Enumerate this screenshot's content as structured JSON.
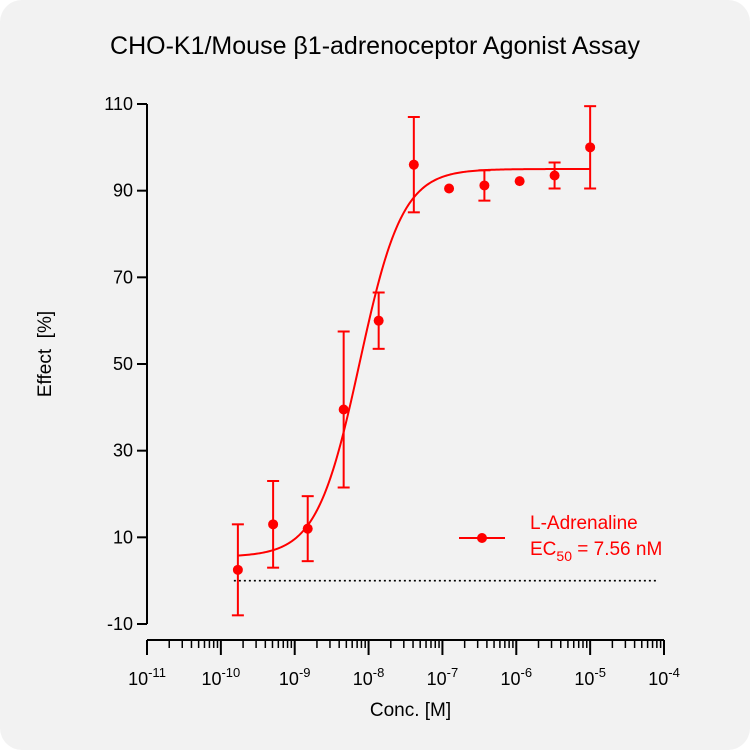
{
  "chart_data": {
    "type": "scatter",
    "title": "CHO-K1/Mouse β1-adrenoceptor Agonist Assay",
    "xlabel": "Conc. [M]",
    "ylabel": "Effect  [%]",
    "x_scale": "log",
    "xlim": [
      1e-11,
      0.0001
    ],
    "ylim": [
      -10,
      110
    ],
    "y_ticks": [
      -10,
      10,
      30,
      50,
      70,
      90,
      110
    ],
    "x_ticks": [
      {
        "base": "10",
        "exp": "-11",
        "value": 1e-11
      },
      {
        "base": "10",
        "exp": "-10",
        "value": 1e-10
      },
      {
        "base": "10",
        "exp": "-9",
        "value": 1e-09
      },
      {
        "base": "10",
        "exp": "-8",
        "value": 1e-08
      },
      {
        "base": "10",
        "exp": "-7",
        "value": 1e-07
      },
      {
        "base": "10",
        "exp": "-6",
        "value": 1e-06
      },
      {
        "base": "10",
        "exp": "-5",
        "value": 1e-05
      },
      {
        "base": "10",
        "exp": "-4",
        "value": 0.0001
      }
    ],
    "baseline": 0,
    "color": "#ff0000",
    "series": [
      {
        "name": "L-Adrenaline",
        "points": [
          {
            "x": 1.7e-10,
            "y": 2.5,
            "err": 10.5
          },
          {
            "x": 5.1e-10,
            "y": 13.0,
            "err": 10.0
          },
          {
            "x": 1.5e-09,
            "y": 12.0,
            "err": 7.5
          },
          {
            "x": 4.6e-09,
            "y": 39.5,
            "err": 18.0
          },
          {
            "x": 1.37e-08,
            "y": 60.0,
            "err": 6.5
          },
          {
            "x": 4.1e-08,
            "y": 96.0,
            "err": 11.0
          },
          {
            "x": 1.23e-07,
            "y": 90.5,
            "err": 0
          },
          {
            "x": 3.7e-07,
            "y": 91.2,
            "err": 3.5
          },
          {
            "x": 1.11e-06,
            "y": 92.2,
            "err": 0
          },
          {
            "x": 3.3e-06,
            "y": 93.5,
            "err": 3.0
          },
          {
            "x": 1e-05,
            "y": 100.0,
            "err": 9.5
          }
        ],
        "fit": {
          "bottom": 5.5,
          "top": 95.0,
          "ec50": 7.56e-09,
          "hill": 1.5
        }
      }
    ],
    "legend": {
      "placement": "right",
      "label": "L-Adrenaline",
      "ec50_prefix": "EC",
      "ec50_sub": "50",
      "ec50_suffix": " = 7.56 nM"
    }
  }
}
